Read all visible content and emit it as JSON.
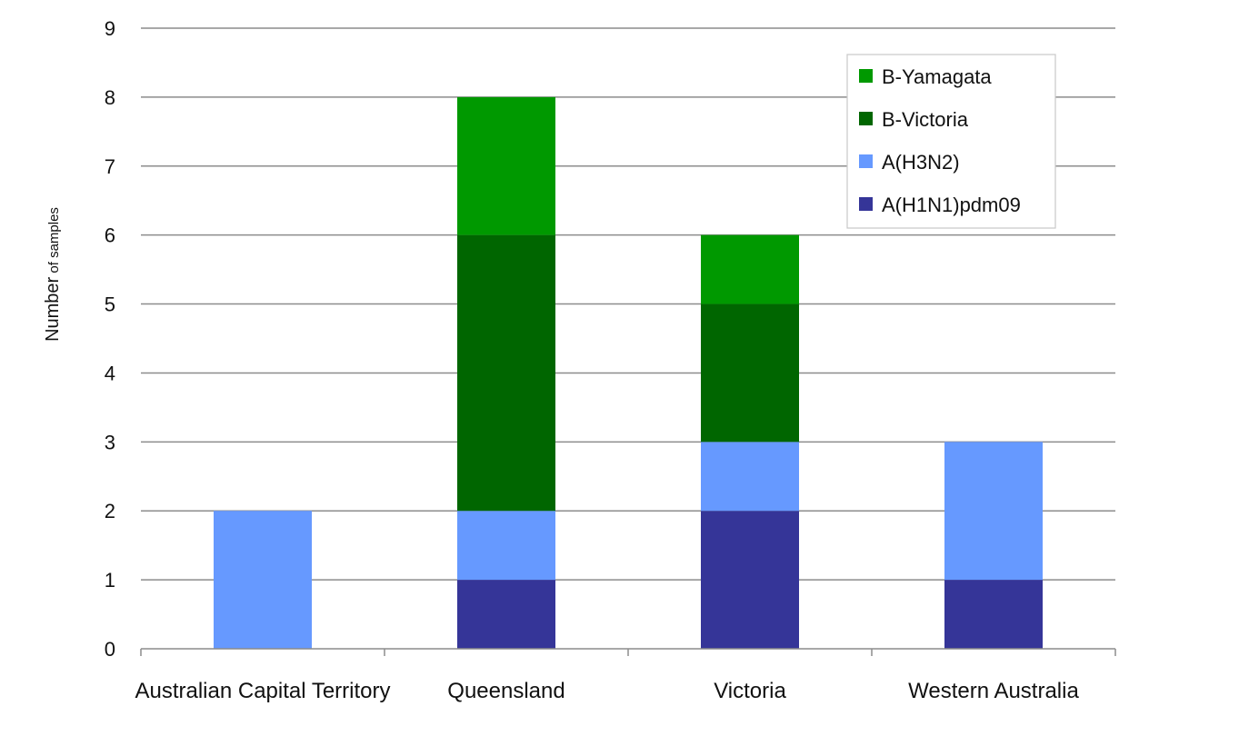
{
  "chart_data": {
    "type": "bar",
    "stacked": true,
    "categories": [
      "Australian Capital Territory",
      "Queensland",
      "Victoria",
      "Western Australia"
    ],
    "series": [
      {
        "name": "A(H1N1)pdm09",
        "color": "#353598",
        "values": [
          0,
          1,
          2,
          1
        ]
      },
      {
        "name": "A(H3N2)",
        "color": "#6699ff",
        "values": [
          2,
          1,
          1,
          2
        ]
      },
      {
        "name": "B-Victoria",
        "color": "#006600",
        "values": [
          0,
          4,
          2,
          0
        ]
      },
      {
        "name": "B-Yamagata",
        "color": "#009900",
        "values": [
          0,
          2,
          1,
          0
        ]
      }
    ],
    "ylabel_main": "Number",
    "ylabel_small": " of samples",
    "ylim": [
      0,
      9
    ],
    "yticks": [
      "0",
      "1",
      "2",
      "3",
      "4",
      "5",
      "6",
      "7",
      "8",
      "9"
    ],
    "grid": true,
    "legend_position": "top-right",
    "legend_order": [
      "B-Yamagata",
      "B-Victoria",
      "A(H3N2)",
      "A(H1N1)pdm09"
    ]
  }
}
